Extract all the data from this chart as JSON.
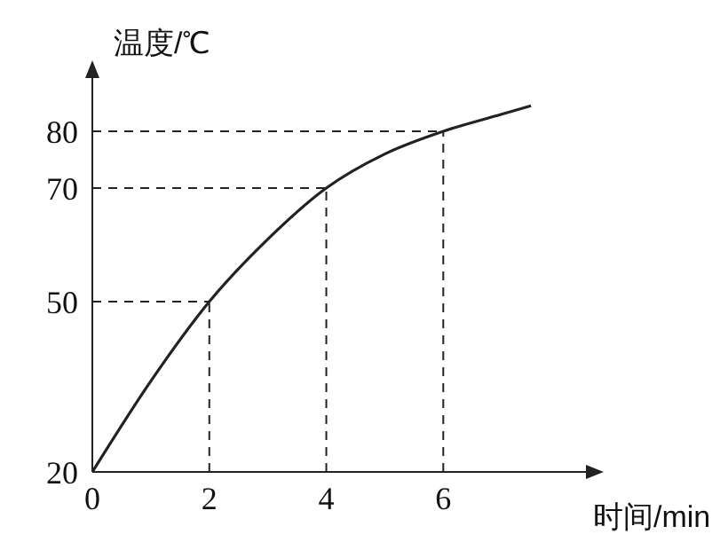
{
  "chart_data": {
    "type": "line",
    "xlabel": "时间/min",
    "ylabel": "温度/℃",
    "x": [
      0,
      1,
      2,
      3,
      4,
      5,
      6,
      7,
      7.5
    ],
    "series": [
      {
        "color": "#222222",
        "values": [
          20,
          36,
          50,
          61,
          70,
          76,
          80,
          83,
          84.5
        ]
      }
    ],
    "xlim": [
      0,
      8.5
    ],
    "ylim": [
      20,
      90
    ],
    "xticks": [
      0,
      2,
      4,
      6
    ],
    "yticks": [
      20,
      50,
      70,
      80
    ],
    "ref_lines": [
      {
        "axis": "x",
        "value": 2,
        "line_style": "dashed"
      },
      {
        "axis": "x",
        "value": 4,
        "line_style": "dashed"
      },
      {
        "axis": "x",
        "value": 6,
        "line_style": "dashed"
      },
      {
        "axis": "y",
        "value": 50,
        "line_style": "dashed"
      },
      {
        "axis": "y",
        "value": 70,
        "line_style": "dashed"
      },
      {
        "axis": "y",
        "value": 80,
        "line_style": "dashed"
      }
    ],
    "marker": "none",
    "line_style": "solid"
  }
}
